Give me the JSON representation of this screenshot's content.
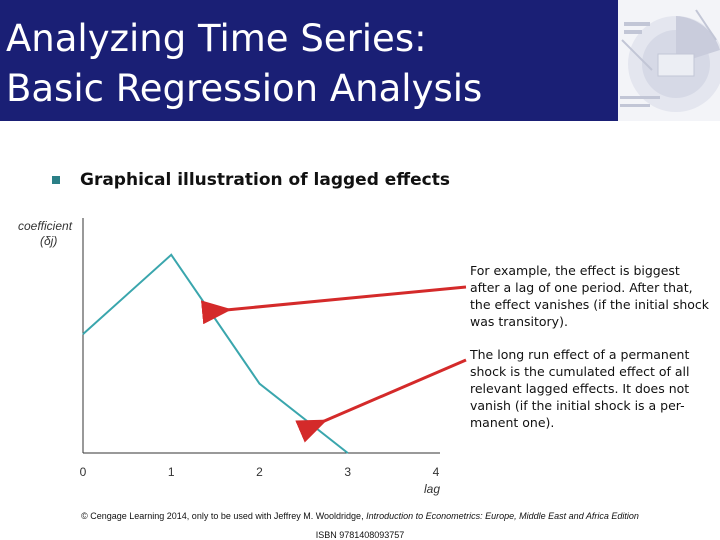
{
  "title": {
    "line1": "Analyzing Time Series:",
    "line2": "Basic Regression Analysis"
  },
  "colors": {
    "title_bg": "#1a1f75",
    "title_text": "#ffffff",
    "accent": "#2a7f86",
    "line": "#3aa6ad",
    "arrow": "#d42a2a"
  },
  "bullet": {
    "text": "Graphical illustration of lagged effects"
  },
  "chart_data": {
    "type": "line",
    "ylabel": "coefficient",
    "ylabel_symbol": "(δj)",
    "xlabel": "lag",
    "x": [
      0,
      1,
      2,
      3,
      4
    ],
    "x_tick_labels": [
      "0",
      "1",
      "2",
      "3",
      "4"
    ],
    "series": [
      {
        "values": [
          0.6,
          1.0,
          0.35,
          0.0,
          0.0
        ]
      }
    ],
    "xlim": [
      0,
      4
    ],
    "ylim": [
      0,
      1.1
    ],
    "grid": false
  },
  "callouts": {
    "first": "For example, the effect is biggest after a lag of one period. After that, the effect vanishes (if the initial shock was transitory).",
    "second": "The long run effect of a permanent shock is the cumulated effect of all relevant lagged effects. It does not vanish (if the initial shock is a per-manent one)."
  },
  "footer": {
    "copyright_prefix": "© Cengage Learning 2014, only to be used with Jeffrey M. Wooldridge, ",
    "book_title": "Introduction to Econometrics: Europe, Middle East and Africa Edition",
    "isbn": "ISBN 9781408093757"
  }
}
